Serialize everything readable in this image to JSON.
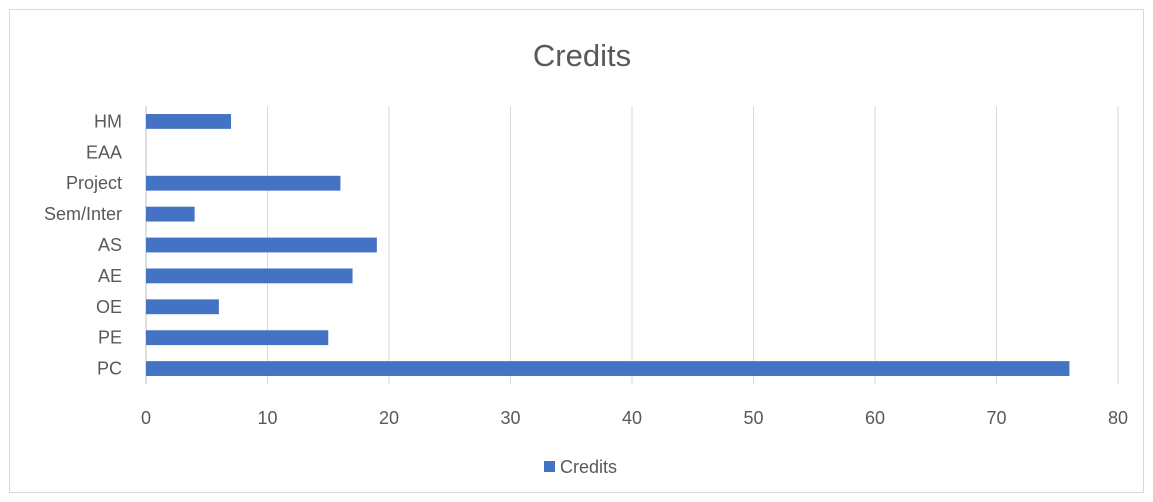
{
  "chart_data": {
    "type": "bar",
    "orientation": "horizontal",
    "title": "Credits",
    "categories": [
      "HM",
      "EAA",
      "Project",
      "Sem/Inter",
      "AS",
      "AE",
      "OE",
      "PE",
      "PC"
    ],
    "series": [
      {
        "name": "Credits",
        "values": [
          7,
          0,
          16,
          4,
          19,
          17,
          6,
          15,
          76
        ],
        "color": "#4472c4"
      }
    ],
    "xlim": [
      0,
      80
    ],
    "x_ticks": [
      0,
      10,
      20,
      30,
      40,
      50,
      60,
      70,
      80
    ],
    "grid": true,
    "legend_position": "bottom"
  }
}
